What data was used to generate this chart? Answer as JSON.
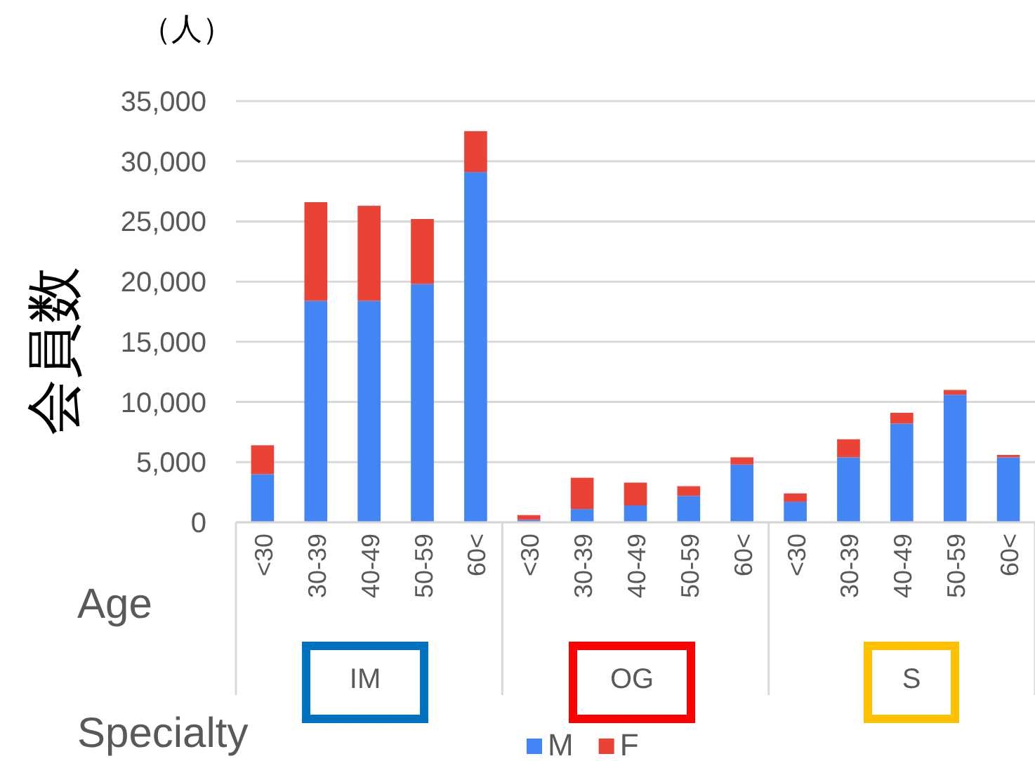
{
  "chart_data": {
    "type": "bar",
    "stacked": true,
    "ylabel": "会員数",
    "xlabel": "Age",
    "annotations": [
      "（人）",
      "Specialty",
      "IM",
      "OG",
      "S"
    ],
    "categories": [
      "<30",
      "30-39",
      "40-49",
      "50-59",
      "60<",
      "<30",
      "30-39",
      "40-49",
      "50-59",
      "60<",
      "<30",
      "30-39",
      "40-49",
      "50-59",
      "60<"
    ],
    "series": [
      {
        "name": "M",
        "color": "#4285f4",
        "values": [
          4000,
          18400,
          18400,
          19800,
          29100,
          200,
          1100,
          1400,
          2200,
          4800,
          1700,
          5400,
          8200,
          10600,
          5400
        ]
      },
      {
        "name": "F",
        "color": "#ea4335",
        "values": [
          2400,
          8200,
          7900,
          5400,
          3400,
          400,
          2600,
          1900,
          800,
          600,
          700,
          1500,
          900,
          400,
          200
        ]
      }
    ],
    "ylim": [
      0,
      35000
    ],
    "yticks": [
      0,
      {
        "value": 5000,
        "label": "5,000"
      },
      {
        "value": 10000,
        "label": "10,000"
      },
      {
        "value": 15000,
        "label": "15,000"
      },
      {
        "value": 20000,
        "label": "20,000"
      },
      {
        "value": 25000,
        "label": "25,000"
      },
      {
        "value": 30000,
        "label": "30,000"
      },
      {
        "value": 35000,
        "label": "35,000"
      }
    ],
    "grid": "y",
    "legend": "bottom"
  }
}
